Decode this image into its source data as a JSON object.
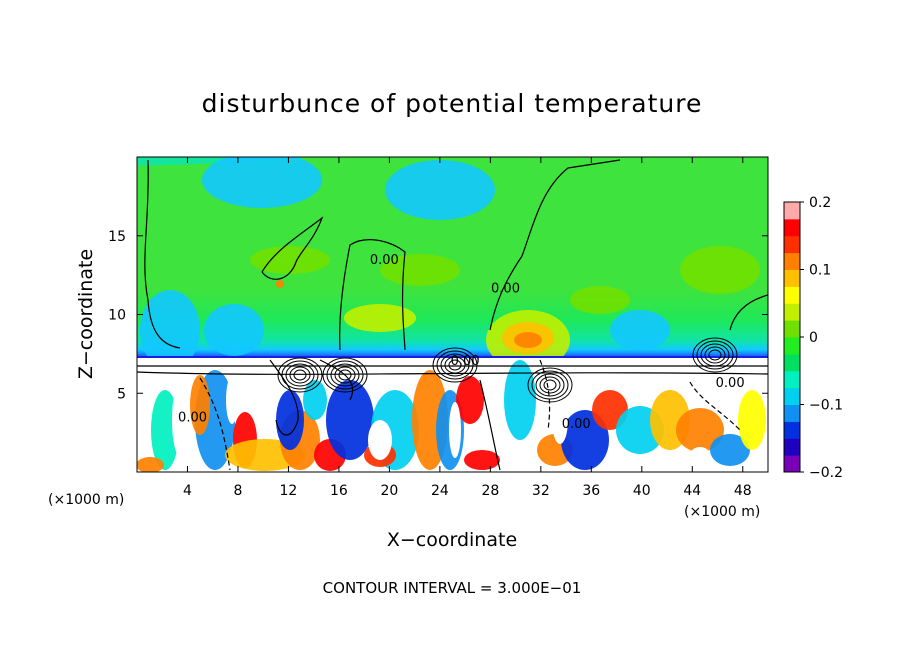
{
  "chart_data": {
    "type": "heatmap",
    "title": "disturbunce of potential temperature",
    "xlabel": "X−coordinate",
    "ylabel": "Z−coordinate",
    "x_unit_label": "(×1000 m)",
    "y_unit_label": "(×1000 m)",
    "footer": "CONTOUR INTERVAL = 3.000E−01",
    "xlim": [
      0,
      50
    ],
    "ylim": [
      0,
      20
    ],
    "x_ticks": [
      4,
      8,
      12,
      16,
      20,
      24,
      28,
      32,
      36,
      40,
      44,
      48
    ],
    "y_ticks": [
      5,
      10,
      15
    ],
    "colorbar": {
      "range": [
        -0.2,
        0.2
      ],
      "tick_values": [
        0.2,
        0.1,
        0,
        -0.1,
        -0.2
      ],
      "tick_labels": [
        "0.2",
        "0.1",
        "0",
        "−0.1",
        "−0.2"
      ],
      "colors": [
        "#7a00b8",
        "#2000c0",
        "#0030e0",
        "#1090f0",
        "#00d0f0",
        "#00f0c0",
        "#00e060",
        "#20ee20",
        "#70e000",
        "#c0f000",
        "#ffff00",
        "#ffc000",
        "#ff8000",
        "#ff3000",
        "#ff0000",
        "#ffaaaa"
      ]
    },
    "contour_labels": [
      {
        "text": "0.00",
        "x": 19.6,
        "z": 13.2
      },
      {
        "text": "0.00",
        "x": 29.2,
        "z": 11.4
      },
      {
        "text": "0.00",
        "x": 4.4,
        "z": 3.2
      },
      {
        "text": "0.00",
        "x": 26.0,
        "z": 6.8
      },
      {
        "text": "0.00",
        "x": 34.8,
        "z": 2.8
      },
      {
        "text": "0.00",
        "x": 47.0,
        "z": 5.4
      }
    ]
  }
}
